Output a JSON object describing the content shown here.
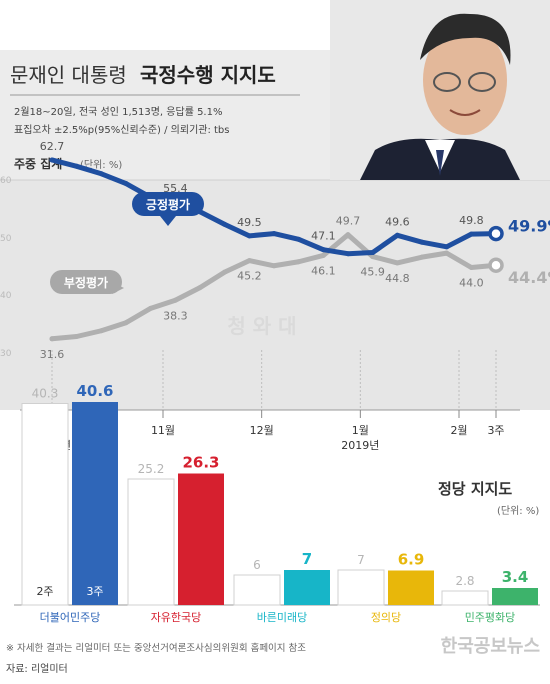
{
  "header": {
    "title_prefix": "문재인 대통령",
    "title_bold": "국정수행 지지도",
    "info_line1": "2월18~20일, 전국 성인 1,513명, 응답률 5.1%",
    "info_line2": "표집오차 ±2.5%p(95%신뢰수준) / 의뢰기관: tbs"
  },
  "weekly_label": "주중 집계",
  "weekly_unit": "(단위: %)",
  "party_title": "정당 지지도",
  "party_unit": "(단위: %)",
  "watermark": "청 와 대",
  "week_tag_prev": "2주",
  "week_tag_curr": "3주",
  "footnote": "※ 자세한 결과는 리얼미터 또는 중앙선거여론조사심의위원회 홈페이지 참조",
  "source": "자료: 리얼미터",
  "corner_watermark": "한국공보뉴스",
  "colors": {
    "approve": "#1f4fa0",
    "disapprove": "#b0b0b0",
    "bg_band": "#ececec",
    "democratic": "#2f66b8",
    "liberty": "#d6202f",
    "bareun": "#17b5c8",
    "justice": "#e8b70a",
    "peace": "#3db36b"
  },
  "chart_data": [
    {
      "type": "line",
      "y_axis_ticks": [
        "60",
        "50",
        "40",
        "30"
      ],
      "x_ticks": [
        {
          "label": "10월",
          "sub": "2018년",
          "x": 0
        },
        {
          "label": "11월",
          "sub": "",
          "x": 4.5
        },
        {
          "label": "12월",
          "sub": "",
          "x": 8.5
        },
        {
          "label": "1월",
          "sub": "2019년",
          "x": 12.5
        },
        {
          "label": "2월",
          "sub": "",
          "x": 16.5
        },
        {
          "label": "3주",
          "sub": "",
          "x": 18.0
        }
      ],
      "series": [
        {
          "name": "긍정평가",
          "color": "#1f4fa0",
          "points": [
            [
              0,
              62.7
            ],
            [
              1,
              61.6
            ],
            [
              2,
              60.3
            ],
            [
              3,
              58.6
            ],
            [
              4,
              56.2
            ],
            [
              5,
              55.4
            ],
            [
              6,
              53.7
            ],
            [
              7,
              51.5
            ],
            [
              8,
              49.5
            ],
            [
              9,
              49.9
            ],
            [
              10,
              48.9
            ],
            [
              11,
              47.1
            ],
            [
              12,
              46.4
            ],
            [
              13,
              46.6
            ],
            [
              14,
              49.6
            ],
            [
              15,
              48.4
            ],
            [
              16,
              47.6
            ],
            [
              17,
              49.8
            ],
            [
              18,
              49.9
            ]
          ],
          "labels": [
            {
              "i": 0,
              "text": "62.7",
              "pos": "above"
            },
            {
              "i": 5,
              "text": "55.4",
              "pos": "above"
            },
            {
              "i": 8,
              "text": "49.5",
              "pos": "above"
            },
            {
              "i": 11,
              "text": "47.1",
              "pos": "above"
            },
            {
              "i": 14,
              "text": "49.6",
              "pos": "above"
            },
            {
              "i": 17,
              "text": "49.8",
              "pos": "above"
            },
            {
              "i": 18,
              "text": "49.9%",
              "pos": "end"
            }
          ]
        },
        {
          "name": "부정평가",
          "color": "#b0b0b0",
          "points": [
            [
              0,
              31.6
            ],
            [
              1,
              32.0
            ],
            [
              2,
              33.0
            ],
            [
              3,
              34.4
            ],
            [
              4,
              36.9
            ],
            [
              5,
              38.3
            ],
            [
              6,
              40.5
            ],
            [
              7,
              43.2
            ],
            [
              8,
              45.2
            ],
            [
              9,
              44.3
            ],
            [
              10,
              45.0
            ],
            [
              11,
              46.1
            ],
            [
              12,
              49.7
            ],
            [
              13,
              45.9
            ],
            [
              14,
              44.8
            ],
            [
              15,
              45.8
            ],
            [
              16,
              46.5
            ],
            [
              17,
              44.0
            ],
            [
              18,
              44.4
            ]
          ],
          "labels": [
            {
              "i": 0,
              "text": "31.6",
              "pos": "below"
            },
            {
              "i": 5,
              "text": "38.3",
              "pos": "below"
            },
            {
              "i": 8,
              "text": "45.2",
              "pos": "below"
            },
            {
              "i": 11,
              "text": "46.1",
              "pos": "below"
            },
            {
              "i": 12,
              "text": "49.7",
              "pos": "above"
            },
            {
              "i": 13,
              "text": "45.9",
              "pos": "below"
            },
            {
              "i": 14,
              "text": "44.8",
              "pos": "below"
            },
            {
              "i": 17,
              "text": "44.0",
              "pos": "below"
            },
            {
              "i": 18,
              "text": "44.4%",
              "pos": "end"
            }
          ]
        }
      ]
    },
    {
      "type": "bar",
      "title": "정당 지지도",
      "categories": [
        "더불어민주당",
        "자유한국당",
        "바른미래당",
        "정의당",
        "민주평화당"
      ],
      "category_colors": [
        "#2f66b8",
        "#d6202f",
        "#17b5c8",
        "#e8b70a",
        "#3db36b"
      ],
      "series": [
        {
          "name": "2주",
          "values": [
            40.3,
            25.2,
            6,
            7,
            2.8
          ]
        },
        {
          "name": "3주",
          "values": [
            40.6,
            26.3,
            7,
            6.9,
            3.4
          ]
        }
      ],
      "value_labels": {
        "prev": [
          "40.3",
          "25.2",
          "6",
          "7",
          "2.8"
        ],
        "curr": [
          "40.6",
          "26.3",
          "7",
          "6.9",
          "3.4"
        ]
      }
    }
  ]
}
